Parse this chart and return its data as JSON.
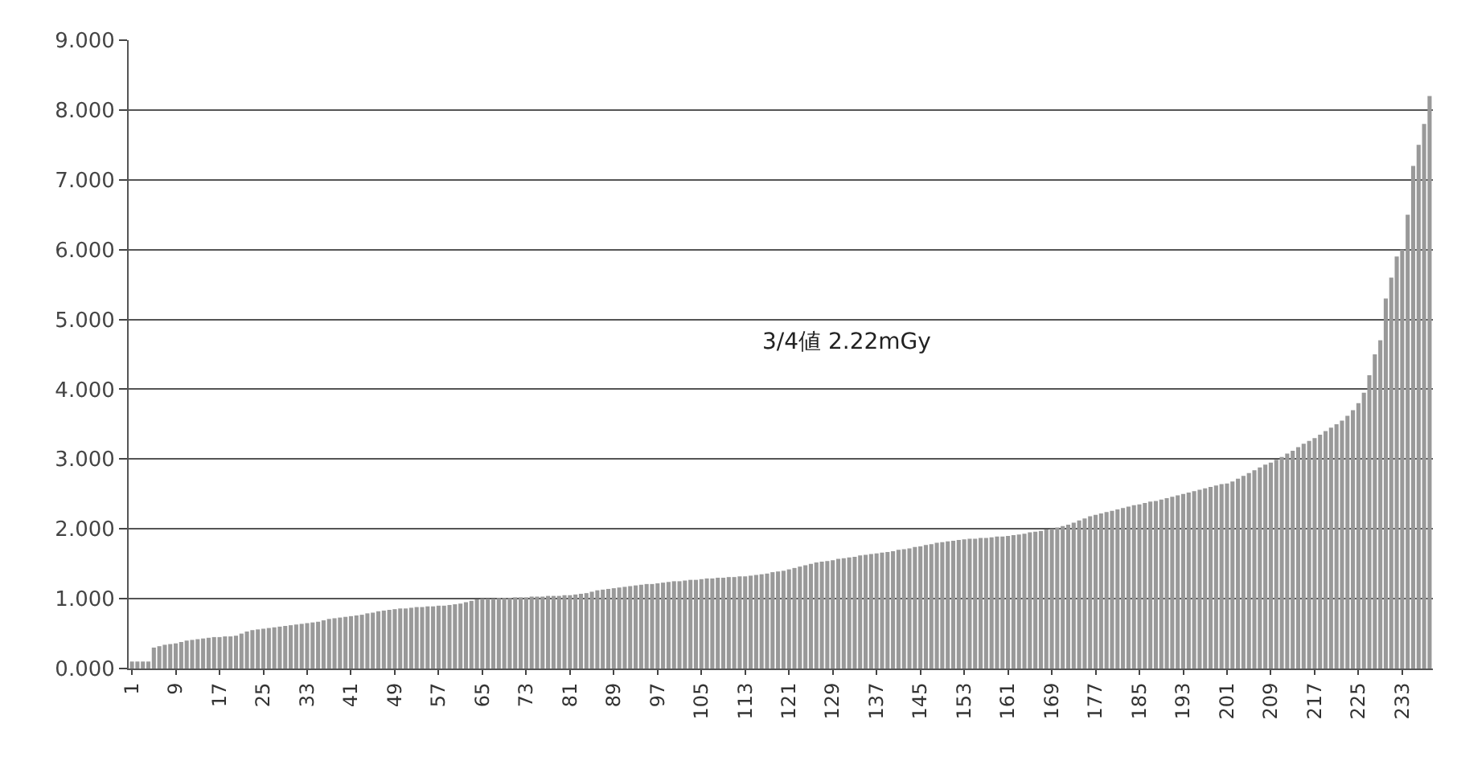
{
  "chart_data": {
    "type": "bar",
    "categories": [
      "1",
      null,
      null,
      null,
      null,
      null,
      null,
      null,
      "9",
      null,
      null,
      null,
      null,
      null,
      null,
      null,
      "17",
      null,
      null,
      null,
      null,
      null,
      null,
      null,
      "25",
      null,
      null,
      null,
      null,
      null,
      null,
      null,
      "33",
      null,
      null,
      null,
      null,
      null,
      null,
      null,
      "41",
      null,
      null,
      null,
      null,
      null,
      null,
      null,
      "49",
      null,
      null,
      null,
      null,
      null,
      null,
      null,
      "57",
      null,
      null,
      null,
      null,
      null,
      null,
      null,
      "65",
      null,
      null,
      null,
      null,
      null,
      null,
      null,
      "73",
      null,
      null,
      null,
      null,
      null,
      null,
      null,
      "81",
      null,
      null,
      null,
      null,
      null,
      null,
      null,
      "89",
      null,
      null,
      null,
      null,
      null,
      null,
      null,
      "97",
      null,
      null,
      null,
      null,
      null,
      null,
      null,
      "105",
      null,
      null,
      null,
      null,
      null,
      null,
      null,
      "113",
      null,
      null,
      null,
      null,
      null,
      null,
      null,
      "121",
      null,
      null,
      null,
      null,
      null,
      null,
      null,
      "129",
      null,
      null,
      null,
      null,
      null,
      null,
      null,
      "137",
      null,
      null,
      null,
      null,
      null,
      null,
      null,
      "145",
      null,
      null,
      null,
      null,
      null,
      null,
      null,
      "153",
      null,
      null,
      null,
      null,
      null,
      null,
      null,
      "161",
      null,
      null,
      null,
      null,
      null,
      null,
      null,
      "169",
      null,
      null,
      null,
      null,
      null,
      null,
      null,
      "177",
      null,
      null,
      null,
      null,
      null,
      null,
      null,
      "185",
      null,
      null,
      null,
      null,
      null,
      null,
      null,
      "193",
      null,
      null,
      null,
      null,
      null,
      null,
      null,
      "201",
      null,
      null,
      null,
      null,
      null,
      null,
      null,
      "209",
      null,
      null,
      null,
      null,
      null,
      null,
      null,
      "217",
      null,
      null,
      null,
      null,
      null,
      null,
      null,
      "225",
      null,
      null,
      null,
      null,
      null,
      null,
      null,
      "233",
      null,
      null,
      null,
      null,
      null
    ],
    "values": [
      0.1,
      0.1,
      0.1,
      0.1,
      0.3,
      0.32,
      0.34,
      0.35,
      0.36,
      0.38,
      0.4,
      0.41,
      0.42,
      0.43,
      0.44,
      0.45,
      0.45,
      0.46,
      0.46,
      0.47,
      0.5,
      0.53,
      0.55,
      0.56,
      0.57,
      0.58,
      0.59,
      0.6,
      0.61,
      0.62,
      0.63,
      0.64,
      0.65,
      0.66,
      0.67,
      0.69,
      0.71,
      0.72,
      0.73,
      0.74,
      0.75,
      0.76,
      0.77,
      0.79,
      0.8,
      0.82,
      0.83,
      0.84,
      0.85,
      0.86,
      0.86,
      0.87,
      0.88,
      0.88,
      0.89,
      0.89,
      0.9,
      0.9,
      0.91,
      0.92,
      0.93,
      0.95,
      0.97,
      0.99,
      1.0,
      1.0,
      1.0,
      1.01,
      1.01,
      1.01,
      1.02,
      1.02,
      1.02,
      1.03,
      1.03,
      1.03,
      1.04,
      1.04,
      1.04,
      1.05,
      1.05,
      1.06,
      1.07,
      1.08,
      1.1,
      1.12,
      1.13,
      1.14,
      1.15,
      1.16,
      1.17,
      1.18,
      1.19,
      1.2,
      1.21,
      1.21,
      1.22,
      1.23,
      1.24,
      1.25,
      1.25,
      1.26,
      1.27,
      1.27,
      1.28,
      1.29,
      1.29,
      1.3,
      1.3,
      1.31,
      1.31,
      1.32,
      1.32,
      1.33,
      1.34,
      1.35,
      1.36,
      1.38,
      1.39,
      1.4,
      1.42,
      1.44,
      1.46,
      1.48,
      1.5,
      1.52,
      1.53,
      1.54,
      1.55,
      1.57,
      1.58,
      1.59,
      1.6,
      1.62,
      1.63,
      1.64,
      1.65,
      1.66,
      1.67,
      1.68,
      1.7,
      1.71,
      1.72,
      1.74,
      1.75,
      1.77,
      1.78,
      1.8,
      1.81,
      1.82,
      1.83,
      1.84,
      1.85,
      1.86,
      1.86,
      1.87,
      1.87,
      1.88,
      1.89,
      1.89,
      1.9,
      1.91,
      1.92,
      1.93,
      1.95,
      1.96,
      1.97,
      1.99,
      2.0,
      2.02,
      2.04,
      2.06,
      2.09,
      2.12,
      2.15,
      2.18,
      2.2,
      2.22,
      2.24,
      2.26,
      2.28,
      2.3,
      2.32,
      2.34,
      2.35,
      2.37,
      2.39,
      2.4,
      2.42,
      2.44,
      2.46,
      2.48,
      2.5,
      2.52,
      2.54,
      2.56,
      2.58,
      2.6,
      2.62,
      2.64,
      2.65,
      2.68,
      2.72,
      2.76,
      2.8,
      2.84,
      2.88,
      2.92,
      2.95,
      2.99,
      3.03,
      3.08,
      3.12,
      3.17,
      3.22,
      3.26,
      3.3,
      3.35,
      3.4,
      3.45,
      3.5,
      3.55,
      3.62,
      3.7,
      3.8,
      3.95,
      4.2,
      4.5,
      4.7,
      5.3,
      5.6,
      5.9,
      6.0,
      6.5,
      7.2,
      7.5,
      7.8,
      8.2
    ],
    "color": "#999999",
    "ylim": [
      0,
      9
    ],
    "yticks": [
      {
        "value": 0,
        "label": "0.000"
      },
      {
        "value": 1,
        "label": "1.000"
      },
      {
        "value": 2,
        "label": "2.000"
      },
      {
        "value": 3,
        "label": "3.000"
      },
      {
        "value": 4,
        "label": "4.000"
      },
      {
        "value": 5,
        "label": "5.000"
      },
      {
        "value": 6,
        "label": "6.000"
      },
      {
        "value": 7,
        "label": "7.000"
      },
      {
        "value": 8,
        "label": "8.000"
      },
      {
        "value": 9,
        "label": "9.000"
      }
    ],
    "grid": "y",
    "annotations": [
      "3/4値 2.22mGy"
    ]
  }
}
